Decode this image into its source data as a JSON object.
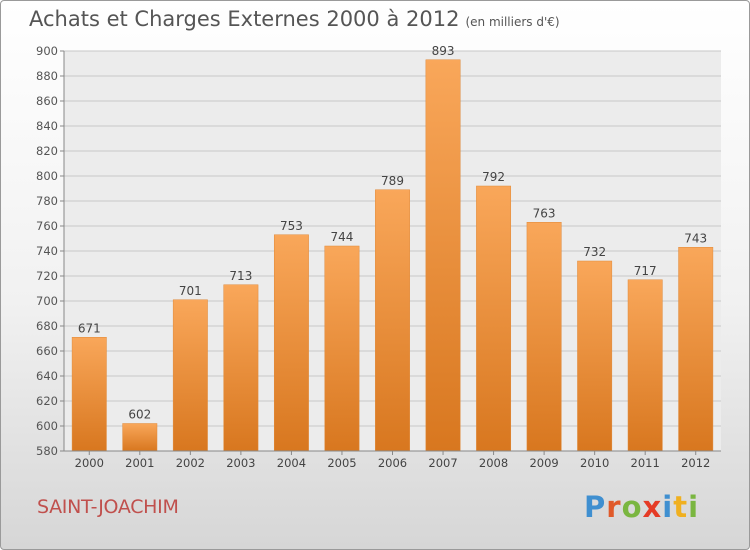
{
  "header": {
    "title": "Achats et Charges Externes 2000 à 2012",
    "unit": "(en milliers d'€)"
  },
  "footer": {
    "place": "SAINT-JOACHIM"
  },
  "logo": {
    "text": "Proxiti",
    "letter_colors": [
      "#3f8fd0",
      "#e05a2a",
      "#7ab640",
      "#e53b26",
      "#3f8fd0",
      "#f0b020",
      "#7ab640"
    ]
  },
  "colors": {
    "bar_light": "#f9a75a",
    "bar_dark": "#d8771f",
    "grid": "#c8c8c8",
    "place": "#c0504d"
  },
  "chart_data": {
    "type": "bar",
    "title": "Achats et Charges Externes 2000 à 2012",
    "subtitle": "(en milliers d'€)",
    "categories": [
      "2000",
      "2001",
      "2002",
      "2003",
      "2004",
      "2005",
      "2006",
      "2007",
      "2008",
      "2009",
      "2010",
      "2011",
      "2012"
    ],
    "values": [
      671,
      602,
      701,
      713,
      753,
      744,
      789,
      893,
      792,
      763,
      732,
      717,
      743
    ],
    "ylim": [
      580,
      900
    ],
    "yticks": [
      580,
      600,
      620,
      640,
      660,
      680,
      700,
      720,
      740,
      760,
      780,
      800,
      820,
      840,
      860,
      880,
      900
    ],
    "grid": true,
    "data_labels": true
  }
}
